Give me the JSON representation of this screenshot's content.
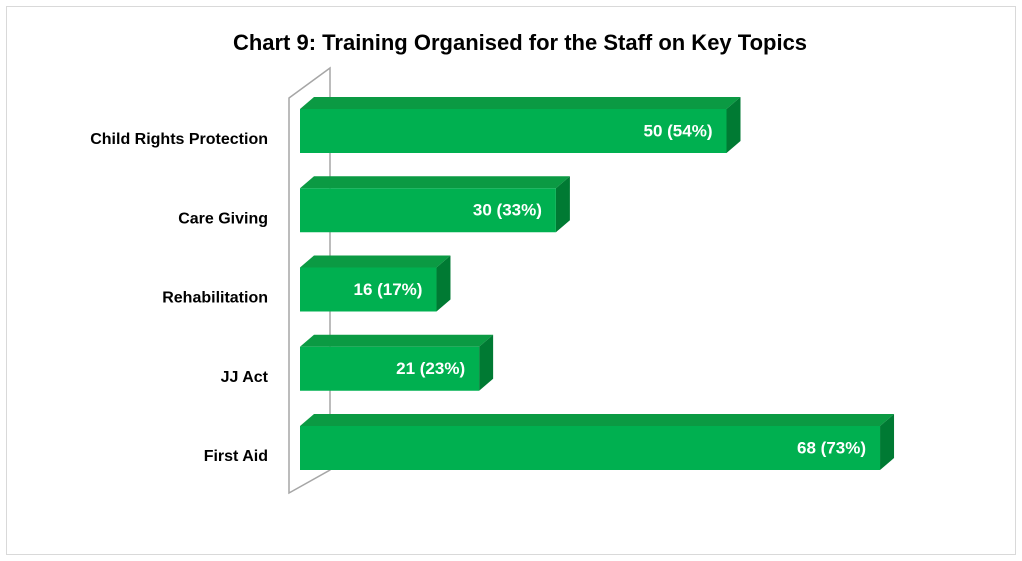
{
  "chart_data": {
    "type": "bar",
    "orientation": "horizontal",
    "title": "Chart 9: Training Organised for the Staff on Key Topics",
    "categories": [
      "Child Rights Protection",
      "Care Giving",
      "Rehabilitation",
      "JJ Act",
      "First Aid"
    ],
    "values": [
      50,
      30,
      16,
      21,
      68
    ],
    "value_labels": [
      "50 (54%)",
      "30 (33%)",
      "16 (17%)",
      "21 (23%)",
      "68 (73%)"
    ],
    "color": "#00b050"
  }
}
